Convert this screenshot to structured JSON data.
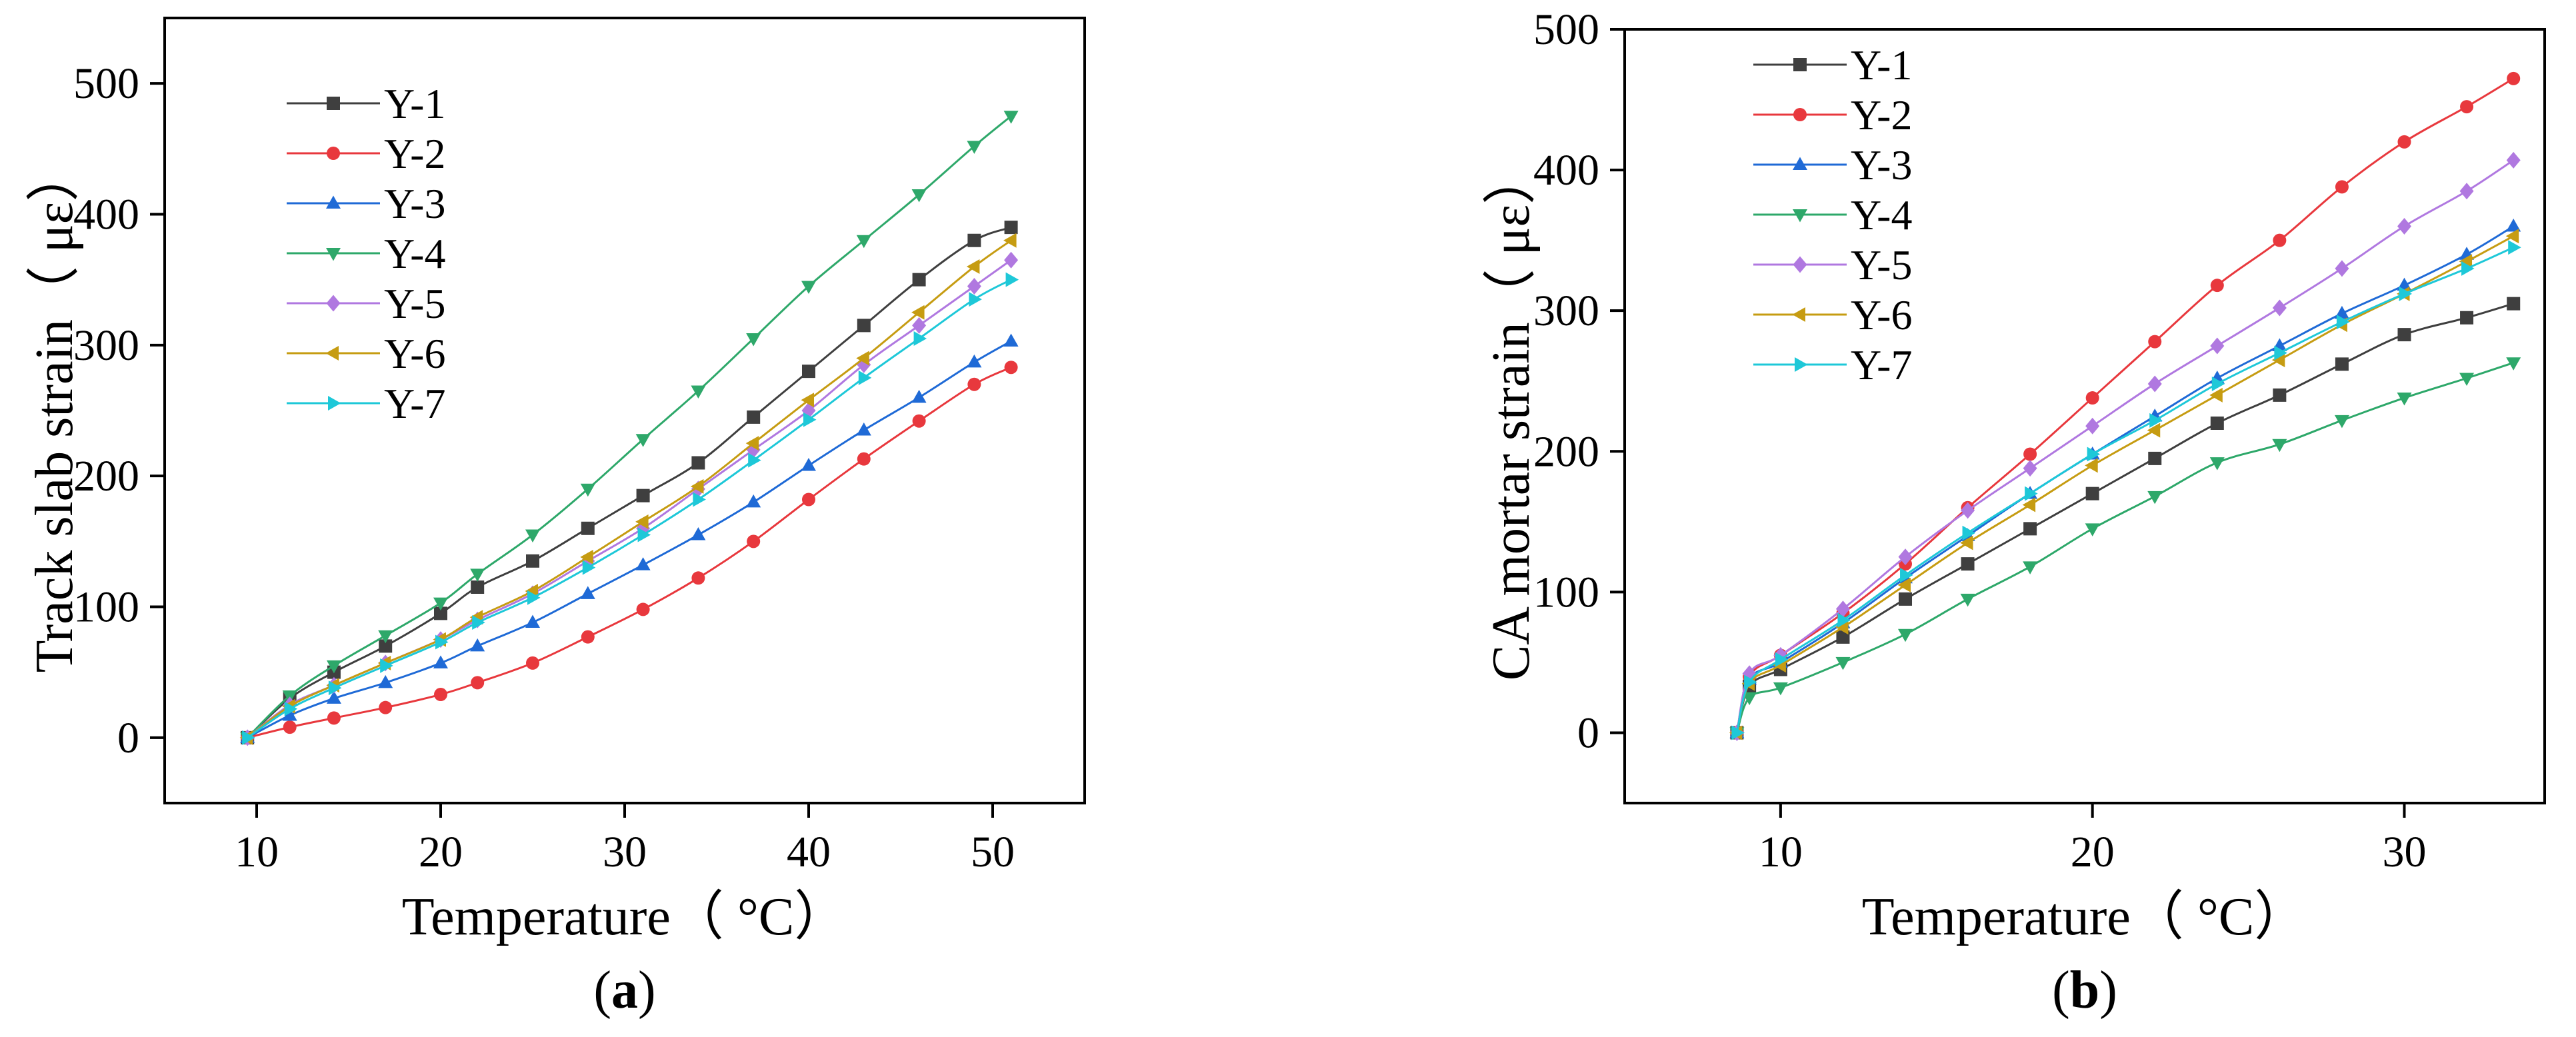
{
  "figure": {
    "colors": {
      "Y-1": "#3f3f3f",
      "Y-2": "#e8383d",
      "Y-3": "#1f6ad6",
      "Y-4": "#2ea86a",
      "Y-5": "#b078e0",
      "Y-6": "#c69c12",
      "Y-7": "#1ec8d8"
    },
    "markers": {
      "Y-1": "square",
      "Y-2": "circle",
      "Y-3": "triangle-up",
      "Y-4": "triangle-down",
      "Y-5": "diamond",
      "Y-6": "triangle-left",
      "Y-7": "triangle-right"
    }
  },
  "chart_data": [
    {
      "type": "line",
      "panel_label": "a",
      "xlabel": "Temperature（ °C）",
      "ylabel": "Track slab strain（ με）",
      "xlim": [
        5,
        55
      ],
      "ylim": [
        -50,
        550
      ],
      "xticks": [
        10,
        20,
        30,
        40,
        50
      ],
      "yticks": [
        0,
        100,
        200,
        300,
        400,
        500
      ],
      "legend_position": "top-left",
      "series": [
        {
          "name": "Y-1",
          "x": [
            9.5,
            11.8,
            14.2,
            17,
            20,
            22,
            25,
            28,
            31,
            34,
            37,
            40,
            43,
            46,
            49,
            51
          ],
          "y": [
            0,
            30,
            50,
            70,
            95,
            115,
            135,
            160,
            185,
            210,
            245,
            280,
            315,
            350,
            380,
            390
          ]
        },
        {
          "name": "Y-2",
          "x": [
            9.5,
            11.8,
            14.2,
            17,
            20,
            22,
            25,
            28,
            31,
            34,
            37,
            40,
            43,
            46,
            49,
            51
          ],
          "y": [
            0,
            8,
            15,
            23,
            33,
            42,
            57,
            77,
            98,
            122,
            150,
            182,
            213,
            242,
            270,
            283
          ]
        },
        {
          "name": "Y-3",
          "x": [
            9.5,
            11.8,
            14.2,
            17,
            20,
            22,
            25,
            28,
            31,
            34,
            37,
            40,
            43,
            46,
            49,
            51
          ],
          "y": [
            0,
            17,
            30,
            42,
            57,
            70,
            88,
            110,
            132,
            155,
            180,
            208,
            235,
            260,
            287,
            303
          ]
        },
        {
          "name": "Y-4",
          "x": [
            9.5,
            11.8,
            14.2,
            17,
            20,
            22,
            25,
            28,
            31,
            34,
            37,
            40,
            43,
            46,
            49,
            51
          ],
          "y": [
            0,
            32,
            55,
            78,
            103,
            125,
            155,
            190,
            228,
            265,
            305,
            345,
            380,
            415,
            452,
            475
          ]
        },
        {
          "name": "Y-5",
          "x": [
            9.5,
            11.8,
            14.2,
            17,
            20,
            22,
            25,
            28,
            31,
            34,
            37,
            40,
            43,
            46,
            49,
            51
          ],
          "y": [
            0,
            25,
            40,
            57,
            75,
            90,
            110,
            135,
            160,
            190,
            220,
            250,
            285,
            315,
            345,
            365
          ]
        },
        {
          "name": "Y-6",
          "x": [
            9.5,
            11.8,
            14.2,
            17,
            20,
            22,
            25,
            28,
            31,
            34,
            37,
            40,
            43,
            46,
            49,
            51
          ],
          "y": [
            0,
            24,
            40,
            57,
            75,
            92,
            112,
            138,
            165,
            192,
            225,
            258,
            290,
            325,
            360,
            380
          ]
        },
        {
          "name": "Y-7",
          "x": [
            9.5,
            11.8,
            14.2,
            17,
            20,
            22,
            25,
            28,
            31,
            34,
            37,
            40,
            43,
            46,
            49,
            51
          ],
          "y": [
            0,
            22,
            38,
            55,
            73,
            88,
            107,
            130,
            155,
            182,
            212,
            243,
            275,
            305,
            335,
            350
          ]
        }
      ]
    },
    {
      "type": "line",
      "panel_label": "b",
      "xlabel": "Temperature（ °C）",
      "ylabel": "CA mortar strain（ με）",
      "xlim": [
        5,
        34.5
      ],
      "ylim": [
        -50,
        500
      ],
      "xticks": [
        10,
        20,
        30
      ],
      "yticks": [
        0,
        100,
        200,
        300,
        400,
        500
      ],
      "legend_position": "top-left",
      "series": [
        {
          "name": "Y-1",
          "x": [
            8.6,
            9,
            10,
            12,
            14,
            16,
            18,
            20,
            22,
            24,
            26,
            28,
            30,
            32,
            33.5
          ],
          "y": [
            0,
            33,
            45,
            68,
            95,
            120,
            145,
            170,
            195,
            220,
            240,
            262,
            283,
            295,
            305
          ]
        },
        {
          "name": "Y-2",
          "x": [
            8.6,
            9,
            10,
            12,
            14,
            16,
            18,
            20,
            22,
            24,
            26,
            28,
            30,
            32,
            33.5
          ],
          "y": [
            0,
            40,
            55,
            85,
            120,
            160,
            198,
            238,
            278,
            318,
            350,
            388,
            420,
            445,
            465
          ]
        },
        {
          "name": "Y-3",
          "x": [
            8.6,
            9,
            10,
            12,
            14,
            16,
            18,
            20,
            22,
            24,
            26,
            28,
            30,
            32,
            33.5
          ],
          "y": [
            0,
            38,
            50,
            78,
            110,
            140,
            170,
            198,
            225,
            252,
            275,
            298,
            318,
            340,
            360
          ]
        },
        {
          "name": "Y-4",
          "x": [
            8.6,
            9,
            10,
            12,
            14,
            16,
            18,
            20,
            22,
            24,
            26,
            28,
            30,
            32,
            33.5
          ],
          "y": [
            0,
            25,
            32,
            50,
            70,
            95,
            118,
            145,
            168,
            192,
            205,
            222,
            238,
            252,
            263
          ]
        },
        {
          "name": "Y-5",
          "x": [
            8.6,
            9,
            10,
            12,
            14,
            16,
            18,
            20,
            22,
            24,
            26,
            28,
            30,
            32,
            33.5
          ],
          "y": [
            0,
            42,
            55,
            88,
            125,
            158,
            188,
            218,
            248,
            275,
            302,
            330,
            360,
            385,
            407
          ]
        },
        {
          "name": "Y-6",
          "x": [
            8.6,
            9,
            10,
            12,
            14,
            16,
            18,
            20,
            22,
            24,
            26,
            28,
            30,
            32,
            33.5
          ],
          "y": [
            0,
            35,
            48,
            75,
            105,
            135,
            162,
            190,
            215,
            240,
            265,
            290,
            312,
            335,
            353
          ]
        },
        {
          "name": "Y-7",
          "x": [
            8.6,
            9,
            10,
            12,
            14,
            16,
            18,
            20,
            22,
            24,
            26,
            28,
            30,
            32,
            33.5
          ],
          "y": [
            0,
            36,
            52,
            80,
            112,
            142,
            170,
            198,
            222,
            248,
            270,
            292,
            312,
            330,
            345
          ]
        }
      ]
    }
  ]
}
